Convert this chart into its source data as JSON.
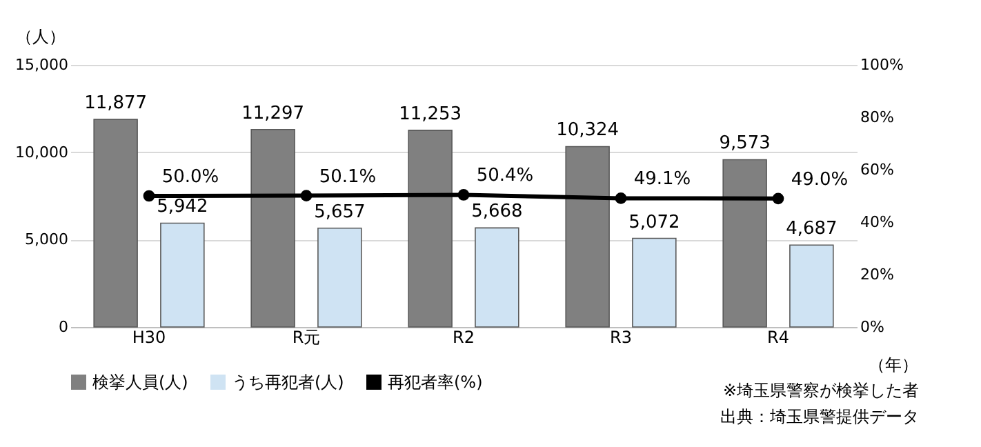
{
  "chart_data": {
    "type": "bar",
    "categories": [
      "H30",
      "R元",
      "R2",
      "R3",
      "R4"
    ],
    "xlabel": "（年）",
    "ylabel": "（人）",
    "series": [
      {
        "name": "検挙人員(人)",
        "color": "#808080",
        "values": [
          11877,
          11297,
          11253,
          10324,
          9573
        ],
        "value_labels": [
          "11,877",
          "11,297",
          "11,253",
          "10,324",
          "9,573"
        ]
      },
      {
        "name": "うち再犯者(人)",
        "color": "#cfe3f3",
        "values": [
          5942,
          5657,
          5668,
          5072,
          4687
        ],
        "value_labels": [
          "5,942",
          "5,657",
          "5,668",
          "5,072",
          "4,687"
        ]
      },
      {
        "name": "再犯者率(%)",
        "type": "line",
        "axis": "y2",
        "color": "#000000",
        "marker": "circle",
        "line_style": "solid",
        "values": [
          50.0,
          50.1,
          50.4,
          49.1,
          49.0
        ],
        "value_labels": [
          "50.0%",
          "50.1%",
          "50.4%",
          "49.1%",
          "49.0%"
        ]
      }
    ],
    "ylim": [
      0,
      15000
    ],
    "yticks": [
      0,
      {
        "value": 5000,
        "label": "5,000"
      },
      {
        "value": 10000,
        "label": "10,000"
      },
      {
        "value": 15000,
        "label": "15,000"
      }
    ],
    "y2lim": [
      0,
      100
    ],
    "y2ticks": [
      {
        "value": 0,
        "label": "0%"
      },
      {
        "value": 20,
        "label": "20%"
      },
      {
        "value": 40,
        "label": "40%"
      },
      {
        "value": 60,
        "label": "60%"
      },
      {
        "value": 80,
        "label": "80%"
      },
      {
        "value": 100,
        "label": "100%"
      }
    ],
    "grid": "y",
    "legend": "bottom",
    "annotations": [
      "※埼玉県警察が検挙した者",
      "出典：埼玉県警提供データ"
    ]
  }
}
